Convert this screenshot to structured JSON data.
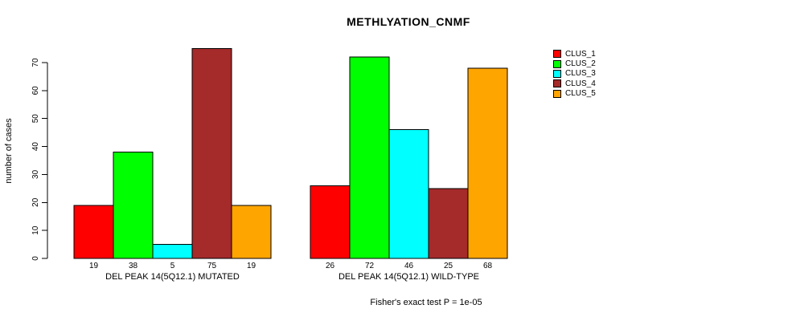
{
  "chart_data": {
    "type": "bar",
    "title": "METHLYATION_CNMF",
    "xlabel": "",
    "ylabel": "number of cases",
    "categories": [
      "DEL PEAK 14(5Q12.1) MUTATED",
      "DEL PEAK 14(5Q12.1) WILD-TYPE"
    ],
    "series": [
      {
        "name": "CLUS_1",
        "color": "#FF0000",
        "values": [
          19,
          26
        ]
      },
      {
        "name": "CLUS_2",
        "color": "#00FF00",
        "values": [
          38,
          72
        ]
      },
      {
        "name": "CLUS_3",
        "color": "#00FFFF",
        "values": [
          5,
          46
        ]
      },
      {
        "name": "CLUS_4",
        "color": "#A52A2A",
        "values": [
          75,
          25
        ]
      },
      {
        "name": "CLUS_5",
        "color": "#FFA500",
        "values": [
          19,
          68
        ]
      }
    ],
    "yticks": [
      0,
      10,
      20,
      30,
      40,
      50,
      60,
      70
    ],
    "ylim": [
      0,
      70
    ],
    "grid": false,
    "bar_value_labels": true,
    "legend_position": "right",
    "annotation": "Fisher's exact test P = 1e-05"
  }
}
